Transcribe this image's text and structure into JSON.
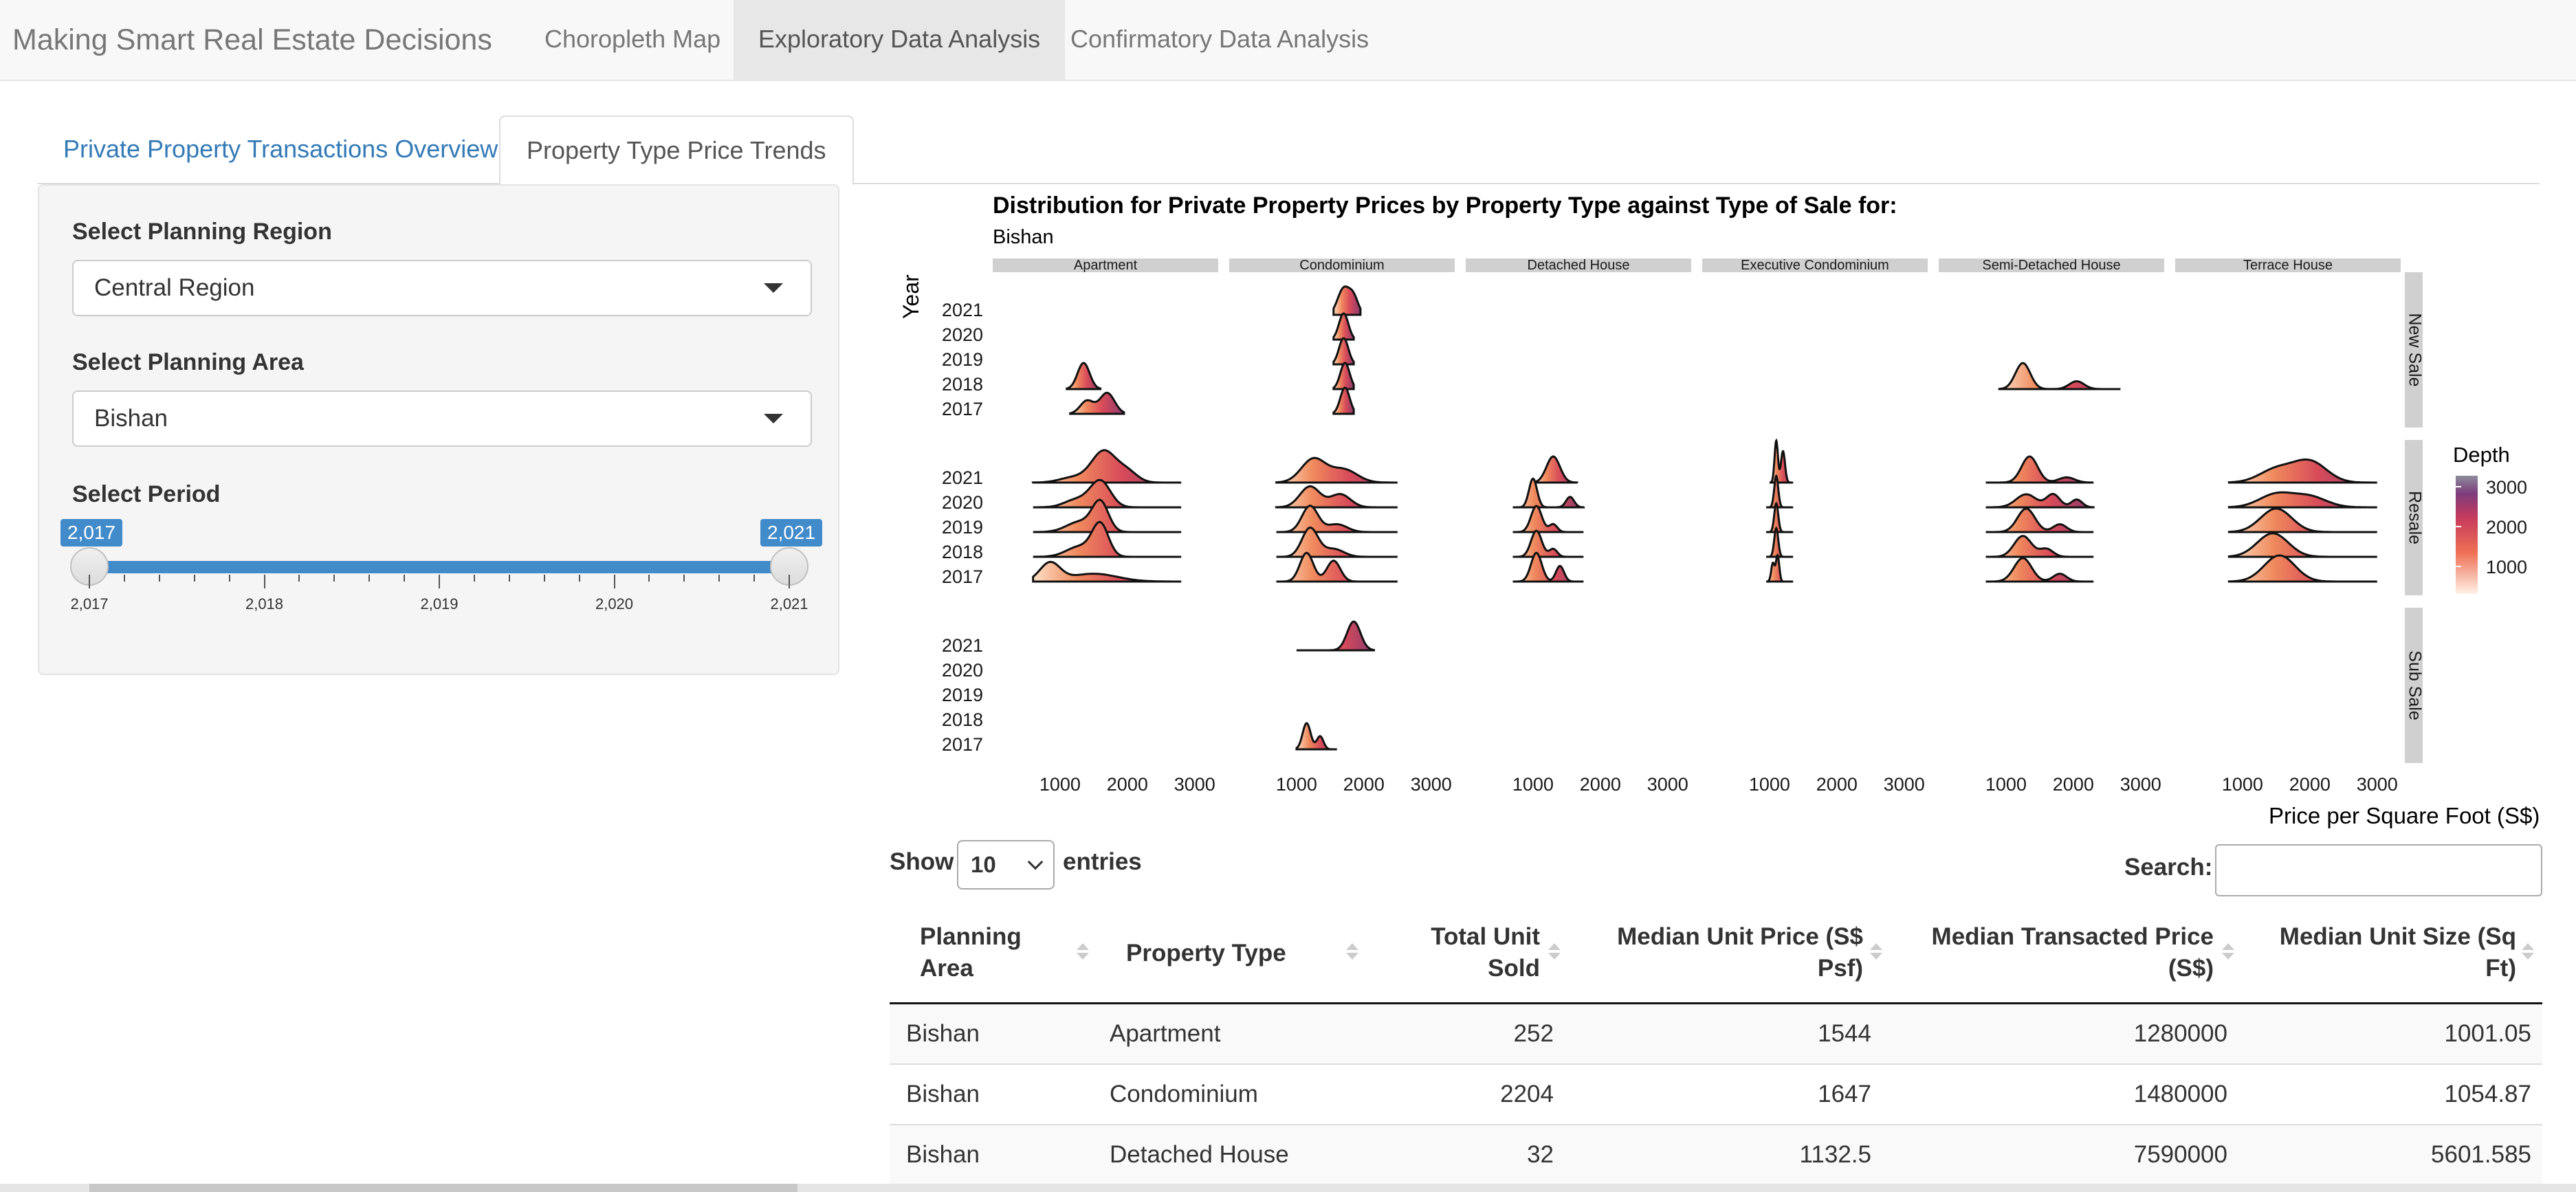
{
  "navbar": {
    "brand": "Making Smart Real Estate Decisions",
    "items": [
      {
        "label": "Choropleth Map"
      },
      {
        "label": "Exploratory Data Analysis"
      },
      {
        "label": "Confirmatory Data Analysis"
      }
    ]
  },
  "tabs": [
    {
      "label": "Private Property Transactions Overview"
    },
    {
      "label": "Property Type Price Trends"
    }
  ],
  "sidebar": {
    "region_label": "Select Planning Region",
    "region_value": "Central Region",
    "area_label": "Select Planning Area",
    "area_value": "Bishan",
    "period_label": "Select Period",
    "slider": {
      "min_badge": "2,017",
      "max_badge": "2,021",
      "ticks": [
        "2,017",
        "2,018",
        "2,019",
        "2,020",
        "2,021"
      ],
      "range": [
        2017,
        2021
      ]
    }
  },
  "chart_data": {
    "type": "ridgeline",
    "title": "Distribution for Private Property Prices by Property Type against Type of Sale for:",
    "subtitle": "Bishan",
    "ylabel": "Year",
    "xlabel": "Price per Square Foot (S$)",
    "x_ticks": [
      "1000",
      "2000",
      "3000"
    ],
    "y_ticks": [
      "2021",
      "2020",
      "2019",
      "2018",
      "2017"
    ],
    "columns": [
      "Apartment",
      "Condominium",
      "Detached House",
      "Executive Condominium",
      "Semi-Detached House",
      "Terrace House"
    ],
    "rows": [
      "New Sale",
      "Resale",
      "Sub Sale"
    ],
    "legend": {
      "title": "Depth",
      "ticks": [
        "3000",
        "2000",
        "1000"
      ],
      "colors": [
        "#fee0d2",
        "#ef6f55",
        "#c53a5c",
        "#7e3c7e",
        "#8d8d9a"
      ],
      "position": "right"
    },
    "panels": [
      {
        "row": "New Sale",
        "col": "Condominium",
        "ridges": [
          {
            "year": "2021",
            "peaks": [
              [
                1700,
                90,
                1.0
              ],
              [
                1850,
                70,
                0.6
              ]
            ],
            "range": [
              1550,
              1950
            ]
          },
          {
            "year": "2020",
            "peaks": [
              [
                1700,
                70,
                1.0
              ]
            ],
            "range": [
              1550,
              1850
            ]
          },
          {
            "year": "2019",
            "peaks": [
              [
                1700,
                70,
                1.0
              ]
            ],
            "range": [
              1550,
              1850
            ]
          },
          {
            "year": "2018",
            "peaks": [
              [
                1720,
                70,
                1.0
              ]
            ],
            "range": [
              1550,
              1850
            ]
          },
          {
            "year": "2017",
            "peaks": [
              [
                1720,
                70,
                1.0
              ]
            ],
            "range": [
              1550,
              1850
            ]
          }
        ]
      },
      {
        "row": "New Sale",
        "col": "Apartment",
        "ridges": [
          {
            "year": "2018",
            "peaks": [
              [
                1350,
                90,
                1.0
              ]
            ],
            "range": [
              1100,
              1600
            ]
          },
          {
            "year": "2017",
            "peaks": [
              [
                1400,
                100,
                0.5
              ],
              [
                1700,
                110,
                0.8
              ]
            ],
            "range": [
              1150,
              1950
            ]
          }
        ]
      },
      {
        "row": "New Sale",
        "col": "Semi-Detached House",
        "ridges": [
          {
            "year": "2018",
            "peaks": [
              [
                1250,
                110,
                1.0
              ],
              [
                2050,
                110,
                0.3
              ]
            ],
            "range": [
              900,
              2700
            ]
          }
        ]
      },
      {
        "row": "Resale",
        "col": "Apartment",
        "ridges": [
          {
            "year": "2021",
            "peaks": [
              [
                1200,
                200,
                0.2
              ],
              [
                1650,
                180,
                1.2
              ],
              [
                2000,
                150,
                0.4
              ]
            ],
            "range": [
              600,
              2800
            ]
          },
          {
            "year": "2020",
            "peaks": [
              [
                1250,
                180,
                0.3
              ],
              [
                1600,
                150,
                1.0
              ]
            ],
            "range": [
              600,
              2800
            ]
          },
          {
            "year": "2019",
            "peaks": [
              [
                1300,
                200,
                0.4
              ],
              [
                1600,
                120,
                1.1
              ]
            ],
            "range": [
              600,
              2800
            ]
          },
          {
            "year": "2018",
            "peaks": [
              [
                1300,
                200,
                0.4
              ],
              [
                1600,
                120,
                1.2
              ]
            ],
            "range": [
              600,
              2800
            ]
          },
          {
            "year": "2017",
            "peaks": [
              [
                850,
                150,
                0.7
              ],
              [
                1500,
                350,
                0.3
              ]
            ],
            "range": [
              600,
              2800
            ]
          }
        ]
      },
      {
        "row": "Resale",
        "col": "Condominium",
        "ridges": [
          {
            "year": "2021",
            "peaks": [
              [
                1250,
                180,
                0.9
              ],
              [
                1700,
                200,
                0.5
              ]
            ],
            "range": [
              700,
              2500
            ]
          },
          {
            "year": "2020",
            "peaks": [
              [
                1200,
                150,
                0.8
              ],
              [
                1650,
                150,
                0.5
              ]
            ],
            "range": [
              700,
              2500
            ]
          },
          {
            "year": "2019",
            "peaks": [
              [
                1200,
                120,
                1.0
              ],
              [
                1600,
                150,
                0.3
              ]
            ],
            "range": [
              700,
              2500
            ]
          },
          {
            "year": "2018",
            "peaks": [
              [
                1200,
                120,
                1.1
              ],
              [
                1550,
                150,
                0.3
              ]
            ],
            "range": [
              700,
              2500
            ]
          },
          {
            "year": "2017",
            "peaks": [
              [
                1150,
                100,
                1.1
              ],
              [
                1550,
                100,
                0.8
              ]
            ],
            "range": [
              700,
              2500
            ]
          }
        ]
      },
      {
        "row": "Resale",
        "col": "Detached House",
        "ridges": [
          {
            "year": "2021",
            "peaks": [
              [
                1300,
                100,
                1.0
              ]
            ],
            "range": [
              1000,
              1650
            ]
          },
          {
            "year": "2020",
            "peaks": [
              [
                1000,
                60,
                1.1
              ],
              [
                1550,
                60,
                0.4
              ]
            ],
            "range": [
              700,
              1750
            ]
          },
          {
            "year": "2019",
            "peaks": [
              [
                1050,
                80,
                1.0
              ],
              [
                1300,
                60,
                0.3
              ]
            ],
            "range": [
              700,
              1750
            ]
          },
          {
            "year": "2018",
            "peaks": [
              [
                1050,
                80,
                1.0
              ],
              [
                1300,
                60,
                0.3
              ]
            ],
            "range": [
              700,
              1750
            ]
          },
          {
            "year": "2017",
            "peaks": [
              [
                1050,
                80,
                1.1
              ],
              [
                1400,
                60,
                0.6
              ]
            ],
            "range": [
              700,
              1750
            ]
          }
        ]
      },
      {
        "row": "Resale",
        "col": "Executive Condominium",
        "ridges": [
          {
            "year": "2021",
            "peaks": [
              [
                1100,
                25,
                1.6
              ],
              [
                1200,
                30,
                1.2
              ]
            ],
            "range": [
              1000,
              1350
            ]
          },
          {
            "year": "2020",
            "peaks": [
              [
                1100,
                30,
                1.2
              ]
            ],
            "range": [
              950,
              1350
            ]
          },
          {
            "year": "2019",
            "peaks": [
              [
                1100,
                30,
                1.1
              ]
            ],
            "range": [
              950,
              1350
            ]
          },
          {
            "year": "2018",
            "peaks": [
              [
                1100,
                30,
                1.1
              ]
            ],
            "range": [
              950,
              1350
            ]
          },
          {
            "year": "2017",
            "peaks": [
              [
                1050,
                25,
                0.7
              ],
              [
                1120,
                25,
                1.0
              ]
            ],
            "range": [
              950,
              1350
            ]
          }
        ]
      },
      {
        "row": "Resale",
        "col": "Semi-Detached House",
        "ridges": [
          {
            "year": "2021",
            "peaks": [
              [
                1350,
                120,
                1.0
              ],
              [
                1900,
                120,
                0.2
              ]
            ],
            "range": [
              700,
              2300
            ]
          },
          {
            "year": "2020",
            "peaks": [
              [
                1300,
                150,
                0.5
              ],
              [
                1700,
                100,
                0.5
              ],
              [
                2050,
                80,
                0.3
              ]
            ],
            "range": [
              700,
              2300
            ]
          },
          {
            "year": "2019",
            "peaks": [
              [
                1300,
                130,
                0.9
              ],
              [
                1800,
                100,
                0.3
              ]
            ],
            "range": [
              700,
              2300
            ]
          },
          {
            "year": "2018",
            "peaks": [
              [
                1250,
                130,
                0.8
              ],
              [
                1600,
                100,
                0.3
              ]
            ],
            "range": [
              700,
              2300
            ]
          },
          {
            "year": "2017",
            "peaks": [
              [
                1250,
                130,
                0.9
              ],
              [
                1800,
                100,
                0.3
              ]
            ],
            "range": [
              700,
              2300
            ]
          }
        ]
      },
      {
        "row": "Resale",
        "col": "Terrace House",
        "ridges": [
          {
            "year": "2021",
            "peaks": [
              [
                1500,
                250,
                0.5
              ],
              [
                2000,
                250,
                0.8
              ]
            ],
            "range": [
              800,
              3000
            ]
          },
          {
            "year": "2020",
            "peaks": [
              [
                1500,
                250,
                0.5
              ],
              [
                2000,
                250,
                0.4
              ]
            ],
            "range": [
              800,
              3000
            ]
          },
          {
            "year": "2019",
            "peaks": [
              [
                1500,
                230,
                0.9
              ]
            ],
            "range": [
              800,
              3000
            ]
          },
          {
            "year": "2018",
            "peaks": [
              [
                1450,
                230,
                0.9
              ]
            ],
            "range": [
              800,
              3000
            ]
          },
          {
            "year": "2017",
            "peaks": [
              [
                1550,
                230,
                1.0
              ]
            ],
            "range": [
              800,
              3000
            ]
          }
        ]
      },
      {
        "row": "Sub Sale",
        "col": "Condominium",
        "ridges": [
          {
            "year": "2021",
            "peaks": [
              [
                1850,
                100,
                1.1
              ]
            ],
            "range": [
              1000,
              2150
            ]
          },
          {
            "year": "2017",
            "peaks": [
              [
                1150,
                60,
                1.0
              ],
              [
                1350,
                50,
                0.5
              ]
            ],
            "range": [
              1000,
              1600
            ]
          }
        ]
      }
    ]
  },
  "table": {
    "show_label": "Show",
    "length_value": "10",
    "entries_label": "entries",
    "search_label": "Search:",
    "headers": [
      [
        "Planning",
        "Area"
      ],
      [
        "Property Type"
      ],
      [
        "Total Unit",
        "Sold"
      ],
      [
        "Median Unit Price (S$",
        "Psf)"
      ],
      [
        "Median Transacted Price",
        "(S$)"
      ],
      [
        "Median Unit Size (Sq",
        "Ft)"
      ]
    ],
    "rows": [
      [
        "Bishan",
        "Apartment",
        "252",
        "1544",
        "1280000",
        "1001.05"
      ],
      [
        "Bishan",
        "Condominium",
        "2204",
        "1647",
        "1480000",
        "1054.87"
      ],
      [
        "Bishan",
        "Detached House",
        "32",
        "1132.5",
        "7590000",
        "5601.585"
      ]
    ]
  }
}
